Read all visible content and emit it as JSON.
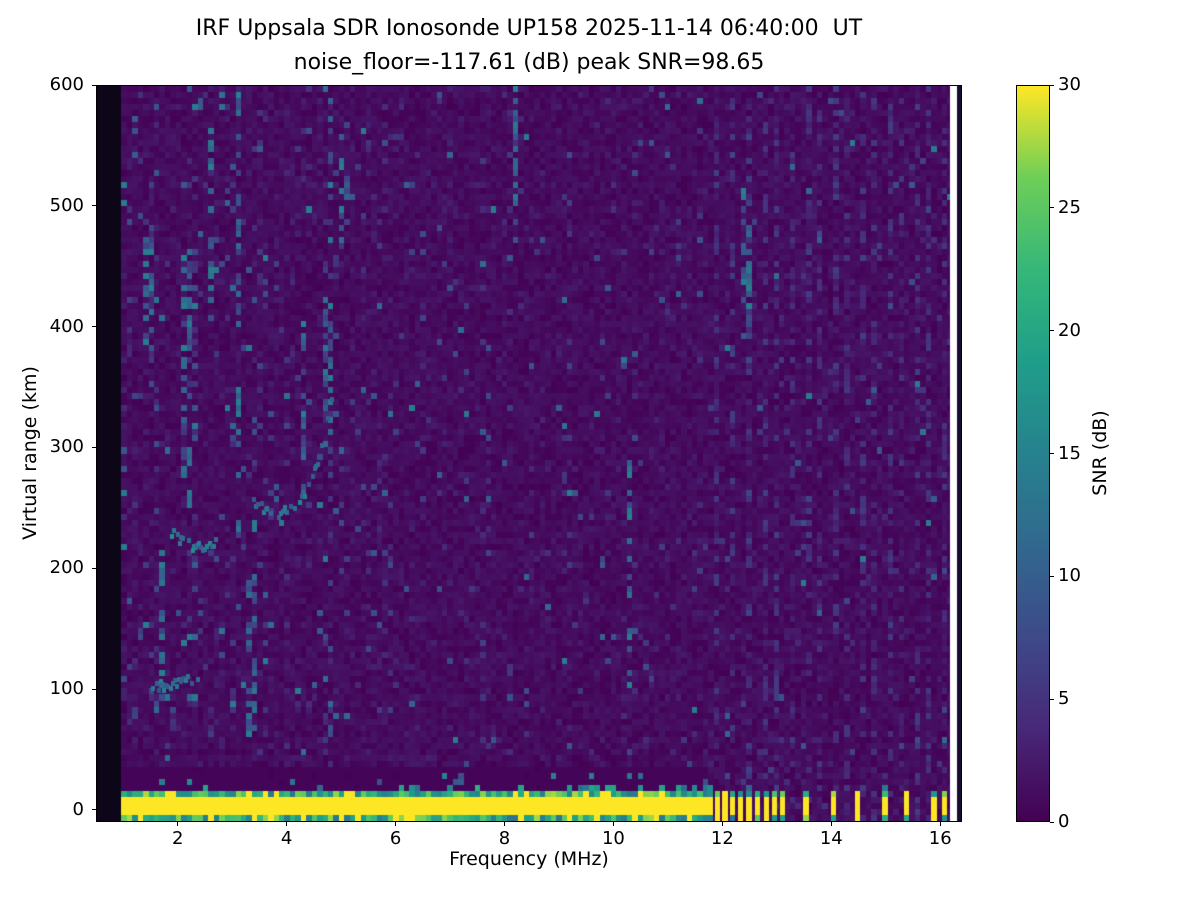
{
  "figure": {
    "title_line1": "IRF Uppsala SDR Ionosonde UP158 2025-11-14 06:40:00  UT",
    "title_line2": "noise_floor=-117.61 (dB) peak SNR=98.65",
    "station": "UP158",
    "timestamp_ut": "2025-11-14 06:40:00",
    "noise_floor_db": -117.61,
    "peak_snr_db": 98.65
  },
  "chart_data": {
    "type": "heatmap",
    "title": "IRF Uppsala SDR Ionosonde UP158 2025-11-14 06:40:00  UT",
    "subtitle": "noise_floor=-117.61 (dB) peak SNR=98.65",
    "xlabel": "Frequency (MHz)",
    "ylabel": "Virtual range (km)",
    "xlim": [
      0.5,
      16.4
    ],
    "ylim": [
      -10,
      600
    ],
    "xticks": [
      2,
      4,
      6,
      8,
      10,
      12,
      14,
      16
    ],
    "yticks": [
      0,
      100,
      200,
      300,
      400,
      500,
      600
    ],
    "grid": false,
    "legend": "none",
    "colormap": "viridis",
    "colorbar": {
      "label": "SNR (dB)",
      "min": 0,
      "max": 30,
      "ticks": [
        0,
        5,
        10,
        15,
        20,
        25,
        30
      ],
      "position": "right"
    },
    "features": {
      "data_freq_range": [
        0.95,
        16.2
      ],
      "bin_mhz": 0.1,
      "bin_km": 5,
      "no_data_left_edge": {
        "f_end": 0.95,
        "color": "#0c0618"
      },
      "right_edge": {
        "white_start": 16.2,
        "dark_column_start": 16.33,
        "dark_color": "#160a2e"
      },
      "ground_band": {
        "f_start": 0.95,
        "f_end": 11.68,
        "range_center_km": 2,
        "half_width_km": 7,
        "snr_db": 30
      },
      "ground_band_shadow_km": [
        15,
        30
      ],
      "ground_blips_mhz": [
        11.78,
        11.92,
        12.06,
        12.2,
        12.34,
        12.5,
        12.66,
        12.82,
        12.97,
        13.12,
        13.55,
        14.05,
        14.5,
        15.0,
        15.4,
        15.9,
        16.1
      ],
      "echo_traces": [
        {
          "name": "sporadic-E echo",
          "snr_db": 12,
          "points": [
            [
              1.5,
              103
            ],
            [
              1.8,
              105
            ],
            [
              2.1,
              108
            ],
            [
              2.35,
              111
            ]
          ]
        },
        {
          "name": "F-layer hook echo",
          "snr_db": 13,
          "points": [
            [
              1.85,
              231
            ],
            [
              2.05,
              223
            ],
            [
              2.3,
              219
            ],
            [
              2.55,
              220
            ],
            [
              2.75,
              226
            ]
          ]
        },
        {
          "name": "F-layer rising trace",
          "snr_db": 12,
          "points": [
            [
              3.35,
              256
            ],
            [
              3.6,
              248
            ],
            [
              3.85,
              247
            ],
            [
              4.1,
              253
            ],
            [
              4.3,
              264
            ],
            [
              4.5,
              284
            ],
            [
              4.65,
              312
            ],
            [
              4.78,
              344
            ],
            [
              4.86,
              372
            ]
          ]
        }
      ],
      "noise_zones": [
        {
          "f": [
            0.95,
            6.0
          ],
          "density": 0.05
        },
        {
          "f": [
            6.0,
            11.6
          ],
          "density": 0.028
        },
        {
          "f": [
            11.6,
            16.2
          ],
          "density": 0.016
        }
      ],
      "rfi_columns": [
        {
          "f": 11.9,
          "w": 0.1,
          "snr": 4.5
        },
        {
          "f": 12.15,
          "w": 0.1,
          "snr": 4.5
        },
        {
          "f": 12.45,
          "w": 0.1,
          "snr": 5
        },
        {
          "f": 12.75,
          "w": 0.1,
          "snr": 4.5
        },
        {
          "f": 13.0,
          "w": 0.1,
          "snr": 4.5
        },
        {
          "f": 13.3,
          "w": 0.1,
          "snr": 4
        },
        {
          "f": 13.55,
          "w": 0.1,
          "snr": 4.5
        },
        {
          "f": 13.8,
          "w": 0.1,
          "snr": 4
        },
        {
          "f": 14.05,
          "w": 0.1,
          "snr": 4.5
        },
        {
          "f": 14.3,
          "w": 0.1,
          "snr": 4
        },
        {
          "f": 14.55,
          "w": 0.1,
          "snr": 4.5
        },
        {
          "f": 14.8,
          "w": 0.1,
          "snr": 4
        },
        {
          "f": 15.05,
          "w": 0.1,
          "snr": 4.5
        },
        {
          "f": 15.3,
          "w": 0.1,
          "snr": 4
        },
        {
          "f": 15.55,
          "w": 0.1,
          "snr": 4.5
        },
        {
          "f": 15.8,
          "w": 0.1,
          "snr": 4
        },
        {
          "f": 16.05,
          "w": 0.1,
          "snr": 4
        }
      ],
      "streaks": [
        {
          "f": 1.45,
          "r": [
            380,
            470
          ]
        },
        {
          "f": 1.7,
          "r": [
            90,
            210
          ]
        },
        {
          "f": 2.15,
          "r": [
            250,
            460
          ]
        },
        {
          "f": 2.6,
          "r": [
            420,
            560
          ]
        },
        {
          "f": 3.1,
          "r": [
            210,
            600
          ]
        },
        {
          "f": 3.35,
          "r": [
            60,
            200
          ]
        },
        {
          "f": 4.3,
          "r": [
            250,
            420
          ]
        },
        {
          "f": 4.75,
          "r": [
            300,
            430
          ]
        },
        {
          "f": 5.05,
          "r": [
            470,
            560
          ]
        },
        {
          "f": 8.2,
          "r": [
            470,
            600
          ]
        },
        {
          "f": 10.3,
          "r": [
            100,
            290
          ]
        },
        {
          "f": 12.45,
          "r": [
            390,
            520
          ]
        }
      ]
    }
  }
}
